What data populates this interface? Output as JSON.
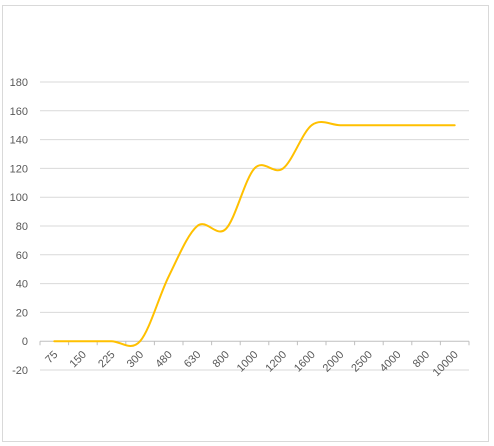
{
  "chart_data": {
    "type": "line",
    "title": "",
    "xlabel": "",
    "ylabel": "",
    "ylim": [
      -20,
      180
    ],
    "yticks": [
      -20,
      0,
      20,
      40,
      60,
      80,
      100,
      120,
      140,
      160,
      180
    ],
    "categories": [
      "75",
      "150",
      "225",
      "300",
      "480",
      "630",
      "800",
      "1000",
      "1200",
      "1600",
      "2000",
      "2500",
      "4000",
      "800",
      "10000"
    ],
    "series": [
      {
        "color": "#FFC000",
        "values": [
          0,
          0,
          0,
          0,
          45,
          80,
          78,
          120,
          120,
          150,
          150,
          150,
          150,
          150,
          150
        ]
      }
    ],
    "grid": true,
    "legend": "none"
  }
}
